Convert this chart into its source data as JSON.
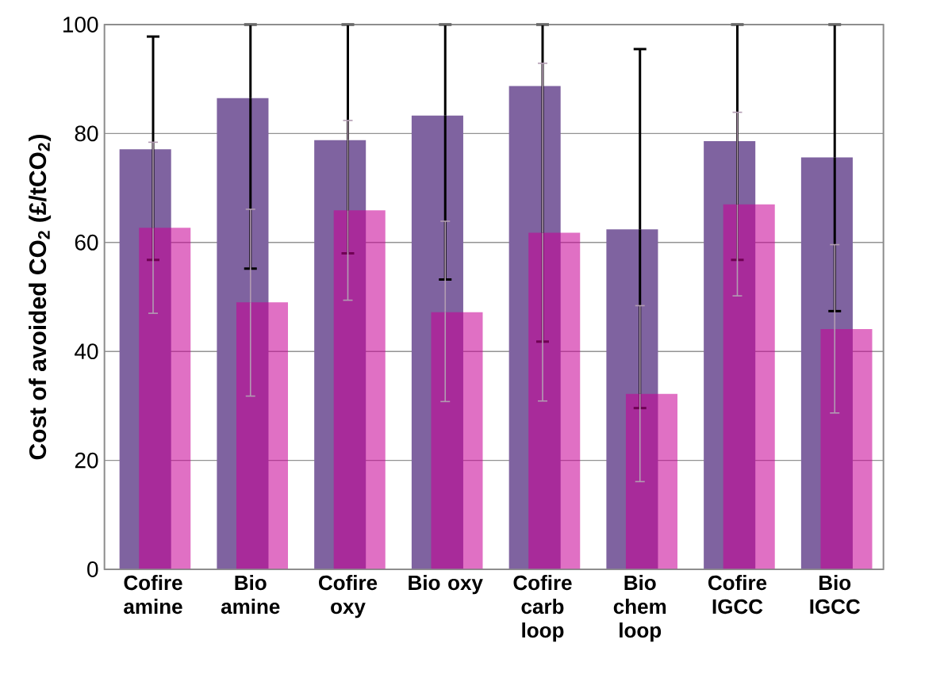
{
  "chart_data": {
    "type": "bar",
    "ylabel": "Cost of avoided CO$_{2}$ (£/tCO$_{2}$)",
    "categories": [
      "Cofire amine",
      "Bio amine",
      "Cofire oxy",
      "Bio oxy",
      "Cofire carb loop",
      "Bio chem loop",
      "Cofire IGCC",
      "Bio IGCC"
    ],
    "series": [
      {
        "color": "#7f63a0",
        "values": [
          77.1,
          86.5,
          78.8,
          83.3,
          88.7,
          62.4,
          78.6,
          75.6
        ],
        "errors": [
          [
            56.8,
            97.8
          ],
          [
            55.2,
            100
          ],
          [
            58.0,
            100
          ],
          [
            53.2,
            100
          ],
          [
            41.8,
            100
          ],
          [
            29.6,
            95.5
          ],
          [
            56.8,
            100
          ],
          [
            47.4,
            100
          ]
        ]
      },
      {
        "color": "#c80096",
        "values": [
          62.7,
          49.0,
          65.9,
          47.2,
          61.8,
          32.2,
          67.0,
          44.1
        ],
        "errors": [
          [
            47.0,
            78.4
          ],
          [
            31.8,
            66.1
          ],
          [
            49.4,
            82.4
          ],
          [
            30.8,
            63.9
          ],
          [
            30.9,
            92.9
          ],
          [
            16.1,
            48.4
          ],
          [
            50.2,
            83.9
          ],
          [
            28.7,
            59.6
          ]
        ]
      }
    ],
    "ylim": [
      0,
      100
    ],
    "yticks": [
      0,
      20,
      40,
      60,
      80,
      100
    ],
    "grid": "y"
  }
}
